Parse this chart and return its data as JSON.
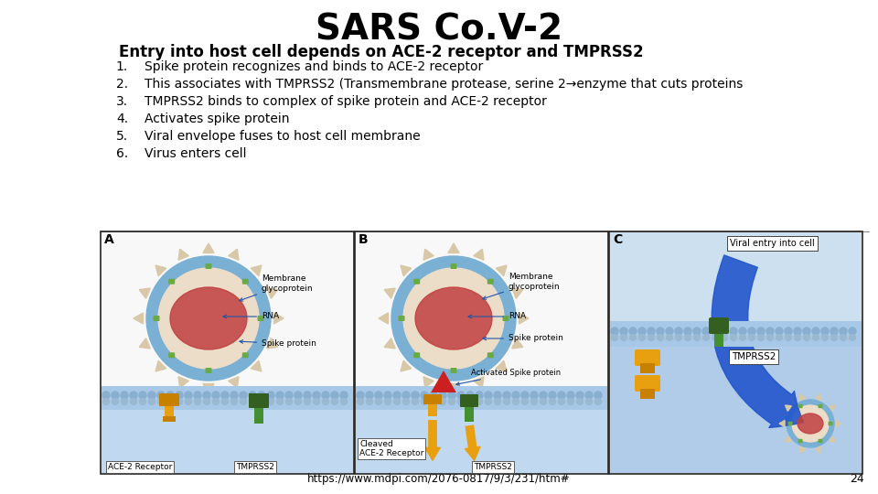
{
  "title": "SARS Co.V-2",
  "subtitle": "Entry into host cell depends on ACE-2 receptor and TMPRSS2",
  "bullet_points": [
    "Spike protein recognizes and binds to ACE-2 receptor",
    "This associates with TMPRSS2 (Transmembrane protease, serine 2→enzyme that cuts proteins",
    "TMPRSS2 binds to complex of spike protein and ACE-2 receptor",
    "Activates spike protein",
    "Viral envelope fuses to host cell membrane",
    "Virus enters cell"
  ],
  "footer_url": "https://www.mdpi.com/2076-0817/9/3/231/htm#",
  "page_number": "24",
  "bg_color": "#ffffff",
  "title_fontsize": 28,
  "subtitle_fontsize": 12,
  "bullet_fontsize": 10,
  "panel_border": "#222222",
  "panel_bg": "#f0f0f0",
  "membrane_color": "#a8c8e8",
  "membrane_bubble_color": "#88aed0",
  "cytoplasm_color": "#c0d8f0",
  "virus_outer": "#7ab0d4",
  "virus_inner": "#ecddc8",
  "virus_rna": "#c04040",
  "virus_spike_tri": "#d8c8a8",
  "virus_spike_green": "#6aaa44",
  "ace2_color": "#e8a010",
  "ace2_dark": "#c88000",
  "tmprss2_color": "#449030",
  "activated_spike_color": "#cc2020",
  "arrow_color": "#2255aa",
  "big_arrow_color": "#2255cc",
  "label_box_bg": "#ffffff",
  "label_box_edge": "#333333"
}
